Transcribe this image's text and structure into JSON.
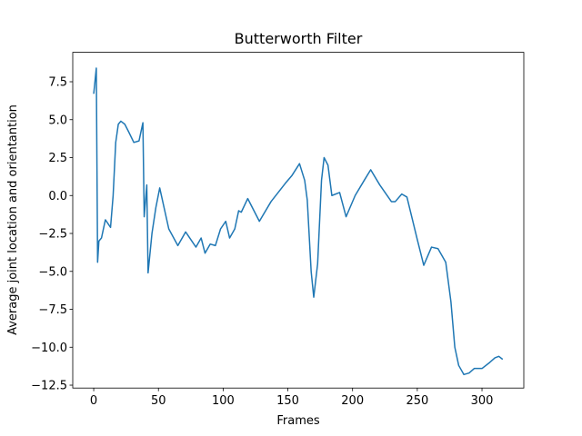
{
  "chart_data": {
    "type": "line",
    "title": "Butterworth Filter",
    "xlabel": "Frames",
    "ylabel": "Average joint location and orientantion",
    "series": [
      {
        "color": "#1f77b4",
        "x": [
          0,
          2,
          3,
          4,
          6,
          9,
          13,
          15,
          17,
          19,
          21,
          24,
          27,
          31,
          35,
          36,
          38,
          39,
          41,
          42,
          45,
          48,
          51,
          58,
          65,
          71,
          79,
          83,
          86,
          90,
          94,
          98,
          102,
          105,
          109,
          112,
          114,
          119,
          128,
          137,
          148,
          153,
          159,
          163,
          165,
          168,
          170,
          173,
          176,
          178,
          181,
          184,
          190,
          195,
          202,
          209,
          214,
          221,
          230,
          233,
          238,
          242,
          246,
          250,
          255,
          261,
          266,
          272,
          276,
          279,
          282,
          286,
          290,
          294,
          300,
          306,
          310,
          313,
          316
        ],
        "values": [
          6.7,
          8.4,
          -4.4,
          -3.0,
          -2.8,
          -1.6,
          -2.1,
          0.0,
          3.5,
          4.7,
          4.9,
          4.7,
          4.2,
          3.5,
          3.6,
          4.0,
          4.8,
          -1.4,
          0.7,
          -5.1,
          -2.5,
          -0.8,
          0.5,
          -2.2,
          -3.3,
          -2.4,
          -3.4,
          -2.8,
          -3.8,
          -3.2,
          -3.3,
          -2.2,
          -1.7,
          -2.8,
          -2.2,
          -1.0,
          -1.1,
          -0.2,
          -1.7,
          -0.4,
          0.8,
          1.3,
          2.1,
          1.0,
          -0.3,
          -5.0,
          -6.7,
          -4.5,
          1.0,
          2.5,
          2.0,
          0.0,
          0.2,
          -1.4,
          0.0,
          1.0,
          1.7,
          0.7,
          -0.4,
          -0.4,
          0.1,
          -0.1,
          -1.5,
          -2.9,
          -4.6,
          -3.4,
          -3.5,
          -4.4,
          -7.0,
          -10.0,
          -11.2,
          -11.8,
          -11.7,
          -11.4,
          -11.4,
          -11.0,
          -10.7,
          -10.6,
          -10.8
        ]
      }
    ],
    "xlim": [
      -16.2,
      332.3
    ],
    "xticks": [
      0,
      50,
      100,
      150,
      200,
      250,
      300
    ],
    "ylim": [
      -12.69,
      9.44
    ],
    "yticks": [
      {
        "value": -12.5,
        "label": "−12.5"
      },
      {
        "value": -10,
        "label": "−10.0"
      },
      {
        "value": -7.5,
        "label": "−7.5"
      },
      {
        "value": -5,
        "label": "−5.0"
      },
      {
        "value": -2.5,
        "label": "−2.5"
      },
      {
        "value": 0,
        "label": "0.0"
      },
      2.5,
      {
        "value": 5,
        "label": "5.0"
      },
      7.5
    ]
  }
}
